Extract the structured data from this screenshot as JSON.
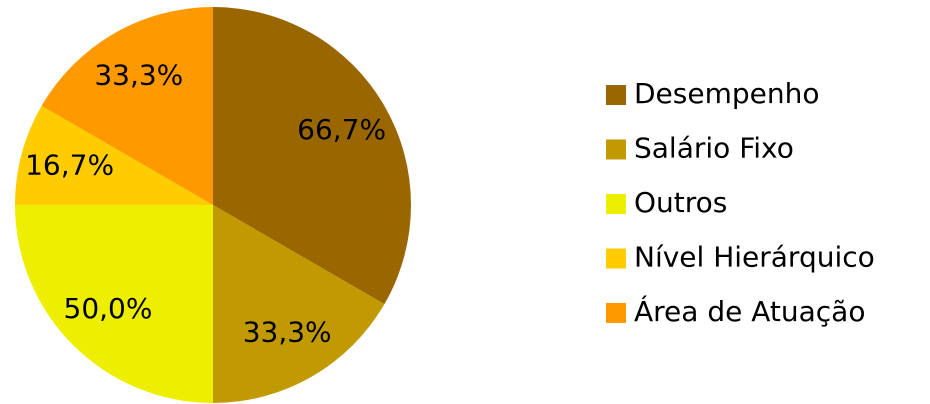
{
  "chart_data": {
    "type": "pie",
    "categories": [
      "Desempenho",
      "Salário Fixo",
      "Outros",
      "Nível Hierárquico",
      "Área de Atuação"
    ],
    "values": [
      66.7,
      33.3,
      50.0,
      16.7,
      33.3
    ],
    "value_labels": [
      "66,7%",
      "33,3%",
      "50,0%",
      "16,7%",
      "33,3%"
    ],
    "colors": [
      "#996600",
      "#c09a00",
      "#eeee00",
      "#ffcc00",
      "#ff9900"
    ],
    "legend": "right"
  }
}
